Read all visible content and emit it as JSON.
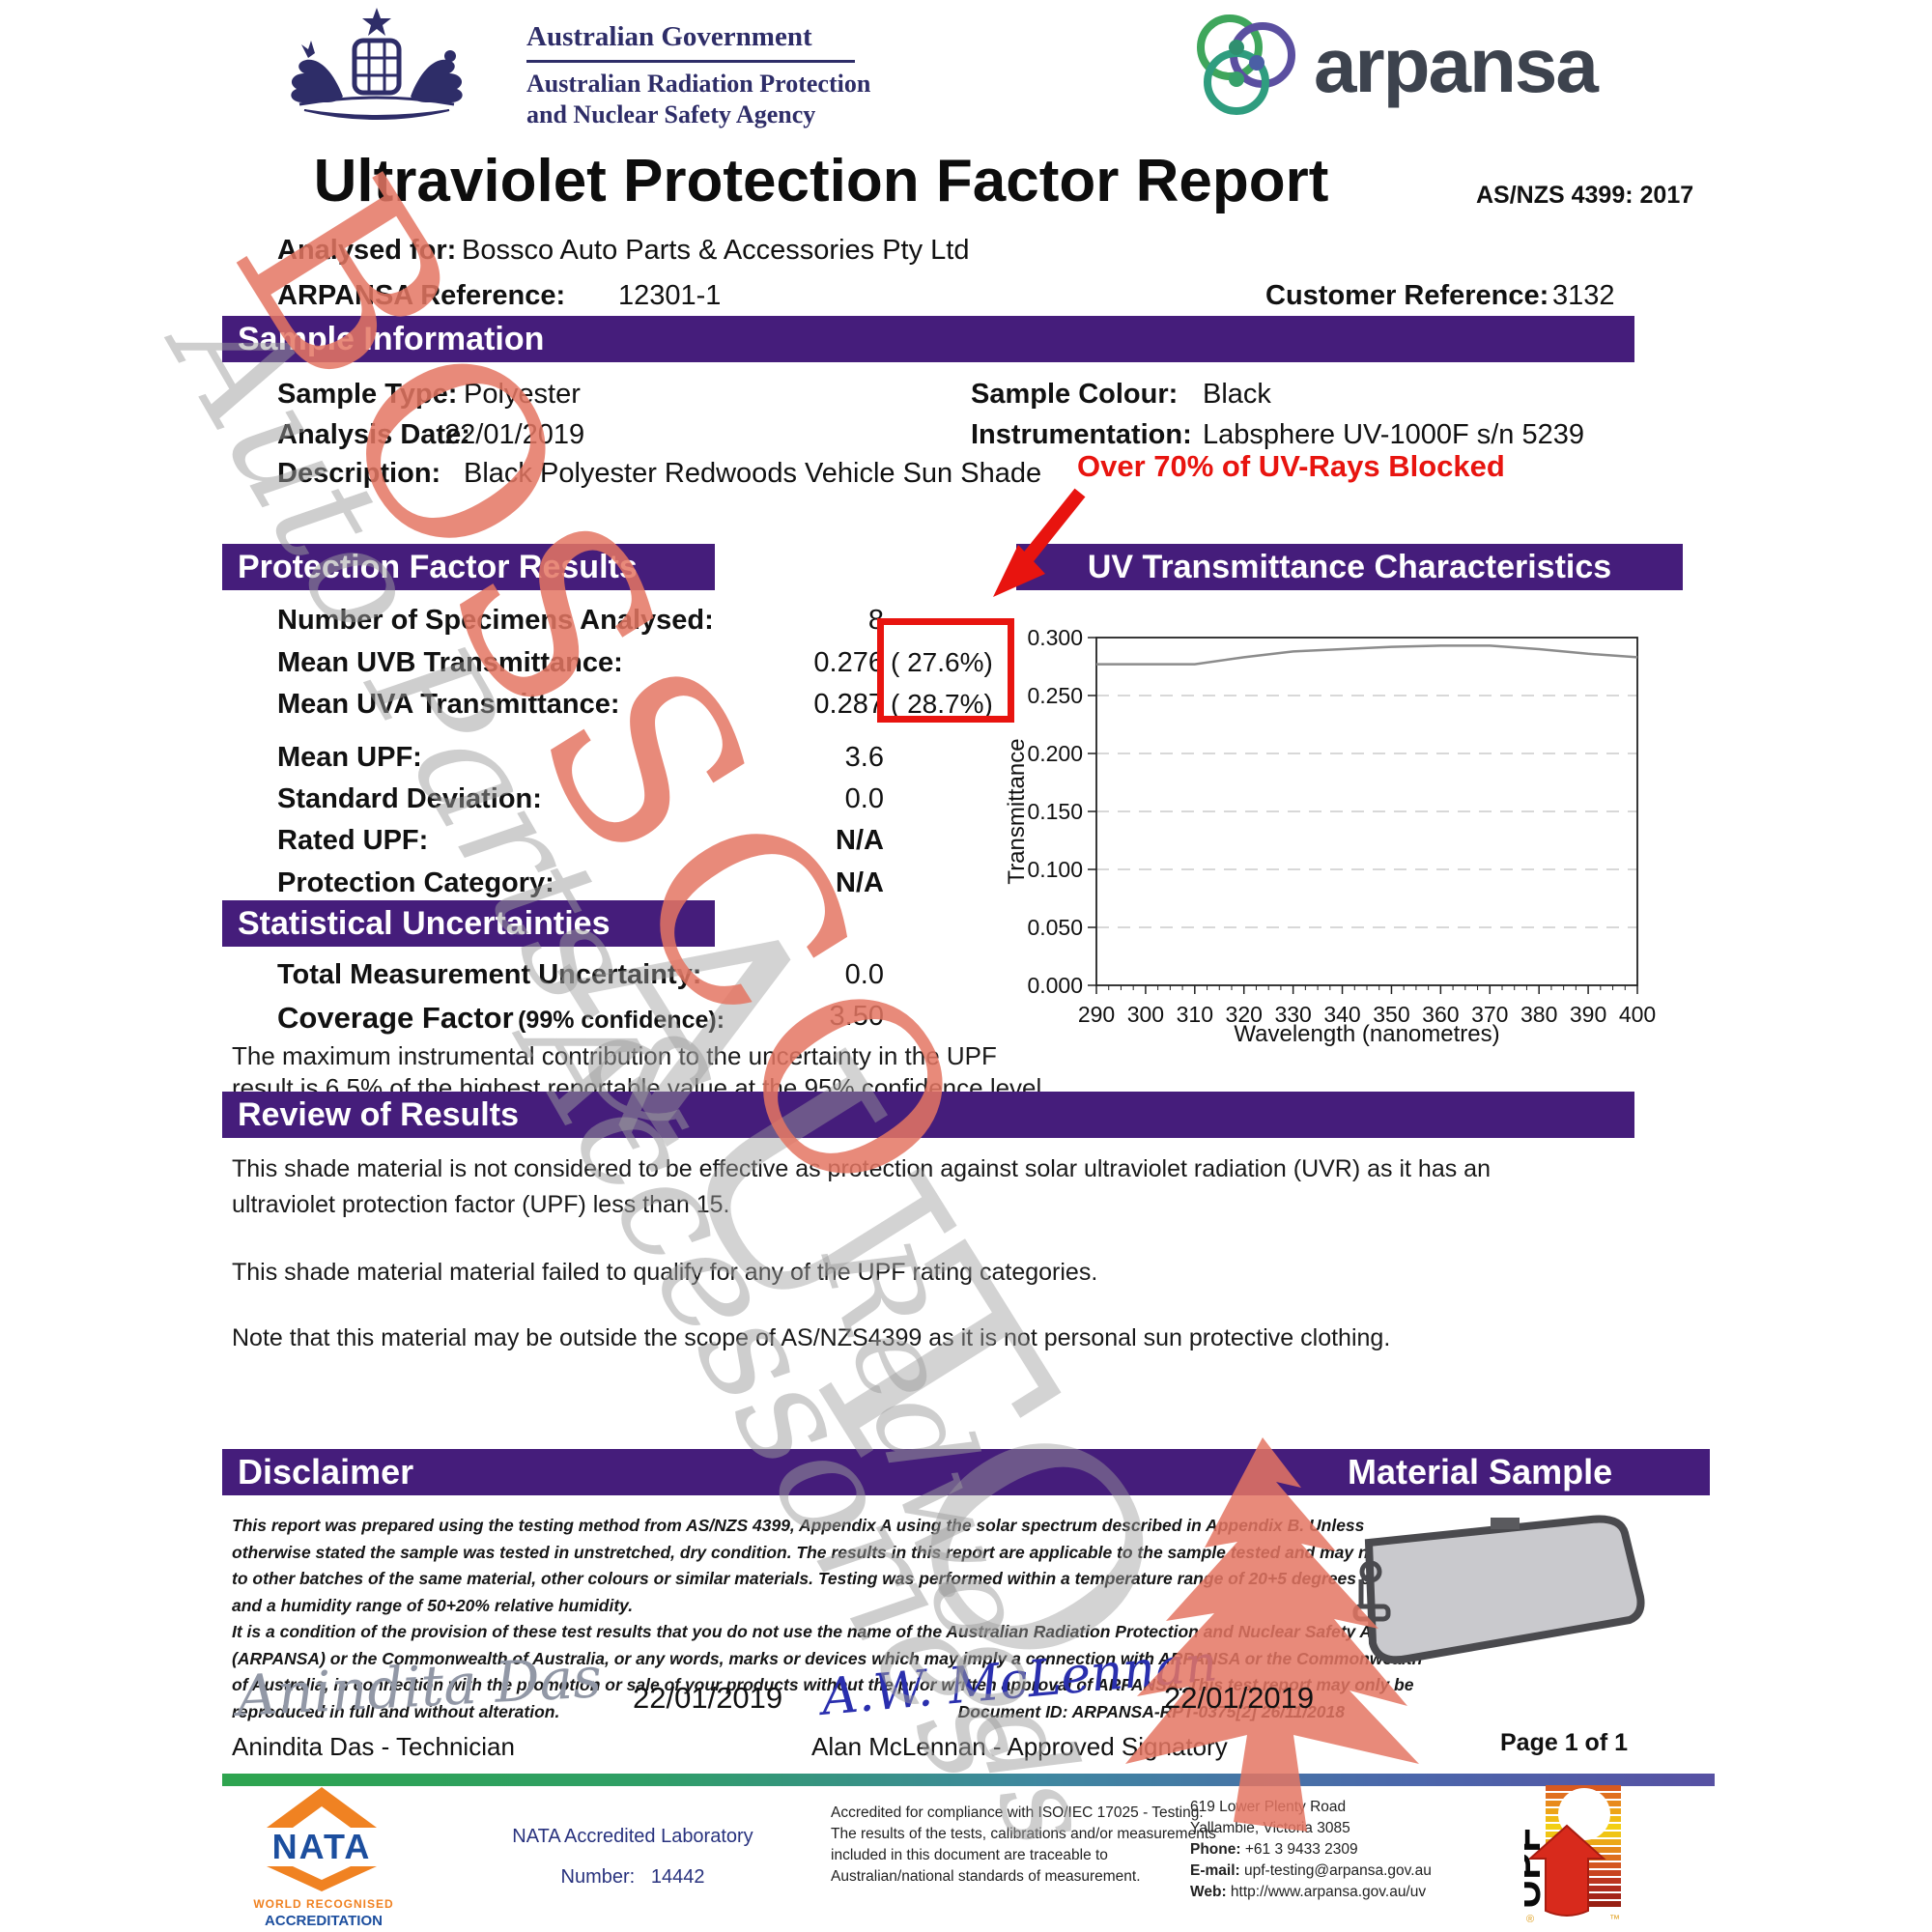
{
  "colors": {
    "header_purple": "#451d7b",
    "annotation_red": "#e8140f",
    "watermark_salmon": "#e57663",
    "watermark_grey": "#9e9e9e",
    "nata_blue": "#1c4e9e",
    "nata_orange": "#f08222",
    "gov_navy": "#2e2d68",
    "signature_blue": "#2a2fae"
  },
  "header": {
    "crest_name": "australian-coat-of-arms",
    "gov_title": "Australian Government",
    "gov_agency_line1": "Australian Radiation Protection",
    "gov_agency_line2": "and Nuclear Safety Agency",
    "arpansa_logo_text": "arpansa",
    "title": "Ultraviolet Protection Factor Report",
    "standard": "AS/NZS 4399: 2017"
  },
  "references": {
    "analysed_for_label": "Analysed for:",
    "analysed_for": "Bossco Auto Parts & Accessories Pty Ltd",
    "arpansa_ref_label": "ARPANSA Reference:",
    "arpansa_ref": "12301-1",
    "customer_ref_label": "Customer Reference:",
    "customer_ref": "3132"
  },
  "sample_information": {
    "heading": "Sample Information",
    "sample_type_label": "Sample Type:",
    "sample_type": "Polyester",
    "sample_colour_label": "Sample Colour:",
    "sample_colour": "Black",
    "analysis_date_label": "Analysis Date:",
    "analysis_date": "22/01/2019",
    "instrumentation_label": "Instrumentation:",
    "instrumentation": "Labsphere UV-1000F s/n 5239",
    "description_label": "Description:",
    "description": "Black Polyester Redwoods Vehicle Sun Shade"
  },
  "uv_annotation": "Over 70% of UV-Rays Blocked",
  "protection_factor_results": {
    "heading": "Protection Factor Results",
    "rows": [
      {
        "label": "Number of Specimens Analysed:",
        "value": "8",
        "percent": ""
      },
      {
        "label": "Mean UVB Transmittance:",
        "value": "0.276",
        "percent": "( 27.6%)"
      },
      {
        "label": "Mean UVA Transmittance:",
        "value": "0.287",
        "percent": "( 28.7%)"
      },
      {
        "label": "Mean UPF:",
        "value": "3.6",
        "percent": ""
      },
      {
        "label": "Standard Deviation:",
        "value": "0.0",
        "percent": ""
      },
      {
        "label": "Rated UPF:",
        "value": "N/A",
        "percent": ""
      },
      {
        "label": "Protection Category:",
        "value": "N/A",
        "percent": ""
      }
    ]
  },
  "statistical_uncertainties": {
    "heading": "Statistical Uncertainties",
    "row1_label": "Total Measurement Uncertainty:",
    "row1_value": "0.0",
    "row2_label": "Coverage Factor",
    "row2_sublabel": "(99% confidence):",
    "row2_value": "3.50",
    "note_line1": "The maximum instrumental contribution to the uncertainty in the UPF",
    "note_line2": "result is 6.5% of the highest reportable value at the 95% confidence level."
  },
  "chart_data": {
    "type": "line",
    "title": "UV Transmittance Characteristics",
    "xlabel": "Wavelength (nanometres)",
    "ylabel": "Transmittance",
    "xlim": [
      290,
      400
    ],
    "ylim": [
      0,
      0.3
    ],
    "xticks": [
      290,
      300,
      310,
      320,
      330,
      340,
      350,
      360,
      370,
      380,
      390,
      400
    ],
    "ytick_labels": [
      "0.000",
      "0.050",
      "0.100",
      "0.150",
      "0.200",
      "0.250",
      "0.300"
    ],
    "minor_tick_step": 2.5,
    "grid": "dashed-horizontal",
    "legend": "none",
    "series_name": "Mean UV transmittance",
    "x": [
      290,
      300,
      310,
      320,
      330,
      340,
      350,
      360,
      370,
      380,
      390,
      400
    ],
    "values": [
      0.277,
      0.277,
      0.277,
      0.283,
      0.288,
      0.29,
      0.292,
      0.293,
      0.293,
      0.29,
      0.286,
      0.283
    ],
    "line_color": "#8c8c8c"
  },
  "review": {
    "heading": "Review of Results",
    "para1_line1": "This shade material is not considered to be effective as protection against solar ultraviolet radiation (UVR) as it has an",
    "para1_line2": "ultraviolet protection factor (UPF) less than 15.",
    "para2": "This shade material material failed to qualify for any of the UPF rating categories.",
    "para3": "Note that this material may be outside the scope of AS/NZS4399 as it is not personal sun protective clothing."
  },
  "disclaimer": {
    "heading": "Disclaimer",
    "lines": [
      "This report was prepared using the testing method from AS/NZS 4399, Appendix A using the solar spectrum described in Appendix B. Unless",
      "otherwise stated the sample was tested in unstretched, dry condition. The results in this report are applicable to the sample tested and may not apply",
      "to other batches of the same material, other colours or similar materials. Testing was performed within a temperature range of 20+5 degrees celcius",
      "and a humidity range of 50+20% relative humidity.",
      "It is a condition of the provision of these test results that you do not use the name of the Australian Radiation Protection and Nuclear Safety Agency",
      "(ARPANSA) or the Commonwealth of Australia, or any words, marks or devices which may imply a connection with ARPANSA or the Commonwealth",
      "of Australia, in connection with the promotion or sale of your products without the prior written approval of ARPANSA. This test report may only be",
      "reproduced in full and without alteration."
    ],
    "document_id": "Document ID: ARPANSA-RPT-0375[2] 26/11/2018"
  },
  "material_sample": {
    "heading": "Material Sample",
    "image_name": "vehicle-sun-shade-sample"
  },
  "signatures": {
    "technician_signature": "Anindita Das",
    "technician_date": "22/01/2019",
    "technician_name": "Anindita Das - Technician",
    "signatory_signature": "A.W. McLennan",
    "signatory_date": "22/01/2019",
    "signatory_name": "Alan McLennan - Approved Signatory",
    "page_label": "Page 1 of 1"
  },
  "footer": {
    "nata_logo_text": "NATA",
    "nata_world": "WORLD RECOGNISED",
    "nata_accreditation": "ACCREDITATION",
    "nata_lab": "NATA Accredited Laboratory",
    "nata_number_label": "Number:",
    "nata_number": "14442",
    "accreditation_lines": [
      "Accredited for compliance with ISO/IEC 17025 - Testing.",
      "The results of the tests, calibrations and/or measurements",
      "included in this document are traceable to",
      "Australian/national standards of measurement."
    ],
    "address_line1": "619 Lower Plenty Road",
    "address_line2": "Yallambie, Victoria 3085",
    "phone_label": "Phone:",
    "phone": "+61 3 9433 2309",
    "email_label": "E-mail:",
    "email": "upf-testing@arpansa.gov.au",
    "web_label": "Web:",
    "web": "http://www.arpansa.gov.au/uv",
    "upf_logo_text": "UPF"
  },
  "watermark": {
    "primary": "BOSSCO",
    "secondary": "AUTO",
    "tagline1": "Auto Parts &",
    "tagline2": "Accessories",
    "script": "Redwoods"
  }
}
